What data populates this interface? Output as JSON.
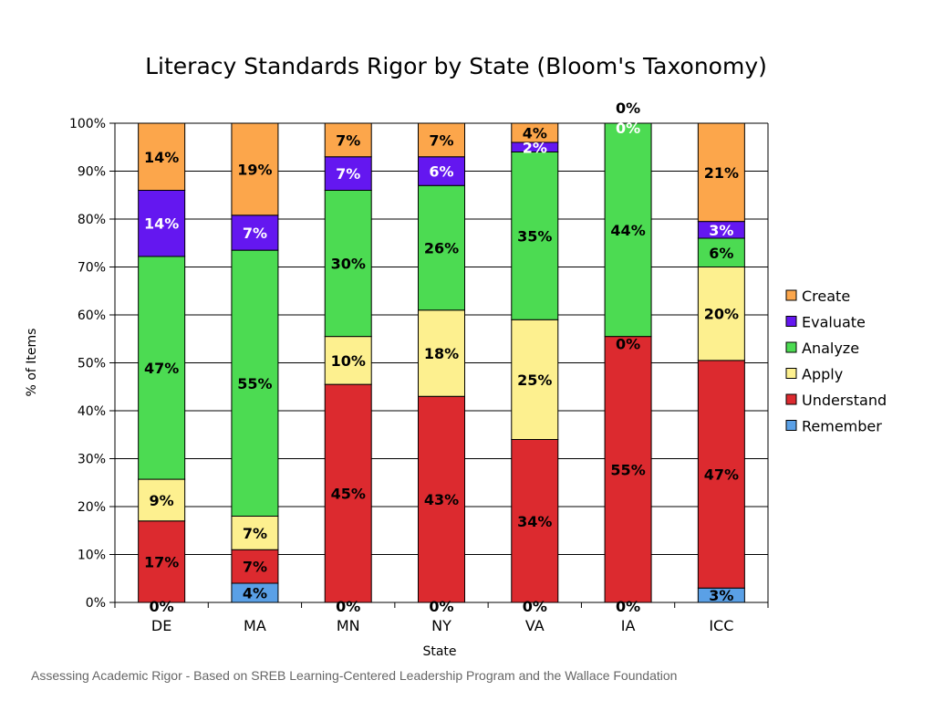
{
  "title": "Literacy Standards Rigor by State (Bloom's Taxonomy)",
  "footer": "Assessing Academic Rigor - Based on SREB Learning-Centered Leadership Program and the Wallace Foundation",
  "chart_data": {
    "type": "bar",
    "stacked": true,
    "title": "Literacy Standards Rigor by State (Bloom's Taxonomy)",
    "xlabel": "State",
    "ylabel": "% of Items",
    "ylim": [
      0,
      100
    ],
    "y_ticks": [
      "0%",
      "10%",
      "20%",
      "30%",
      "40%",
      "50%",
      "60%",
      "70%",
      "80%",
      "90%",
      "100%"
    ],
    "grid": true,
    "legend_position": "right",
    "categories": [
      "DE",
      "MA",
      "MN",
      "NY",
      "VA",
      "IA",
      "ICC"
    ],
    "series": [
      {
        "name": "Remember",
        "color": "#5aa0e6",
        "label_color": "#000000",
        "values": [
          0,
          4,
          0,
          0,
          0,
          0,
          3
        ],
        "labels": [
          "0%",
          "4%",
          "0%",
          "0%",
          "0%",
          "0%",
          "3%"
        ]
      },
      {
        "name": "Understand",
        "color": "#dc2a2f",
        "label_color": "#000000",
        "values": [
          17,
          7,
          45.5,
          43,
          34,
          55.5,
          47.5
        ],
        "labels": [
          "17%",
          "7%",
          "45%",
          "43%",
          "34%",
          "55%",
          "47%"
        ]
      },
      {
        "name": "Apply",
        "color": "#fdf08f",
        "label_color": "#000000",
        "values": [
          8.7,
          7,
          10,
          18,
          25,
          0,
          19.5
        ],
        "labels": [
          "9%",
          "7%",
          "10%",
          "18%",
          "25%",
          "0%",
          "20%"
        ]
      },
      {
        "name": "Analyze",
        "color": "#4cdb52",
        "label_color": "#000000",
        "values": [
          46.5,
          55.5,
          30.5,
          26,
          35,
          44.5,
          6
        ],
        "labels": [
          "47%",
          "55%",
          "30%",
          "26%",
          "35%",
          "44%",
          "6%"
        ]
      },
      {
        "name": "Evaluate",
        "color": "#6417f0",
        "label_color": "#ffffff",
        "values": [
          13.8,
          7.3,
          7,
          6,
          2,
          0,
          3.5
        ],
        "labels": [
          "14%",
          "7%",
          "7%",
          "6%",
          "2%",
          "0%",
          "3%"
        ]
      },
      {
        "name": "Create",
        "color": "#fca64b",
        "label_color": "#000000",
        "values": [
          14,
          19.2,
          7,
          7,
          4,
          0,
          20.5
        ],
        "labels": [
          "14%",
          "19%",
          "7%",
          "7%",
          "4%",
          "0%",
          "21%"
        ]
      }
    ]
  }
}
